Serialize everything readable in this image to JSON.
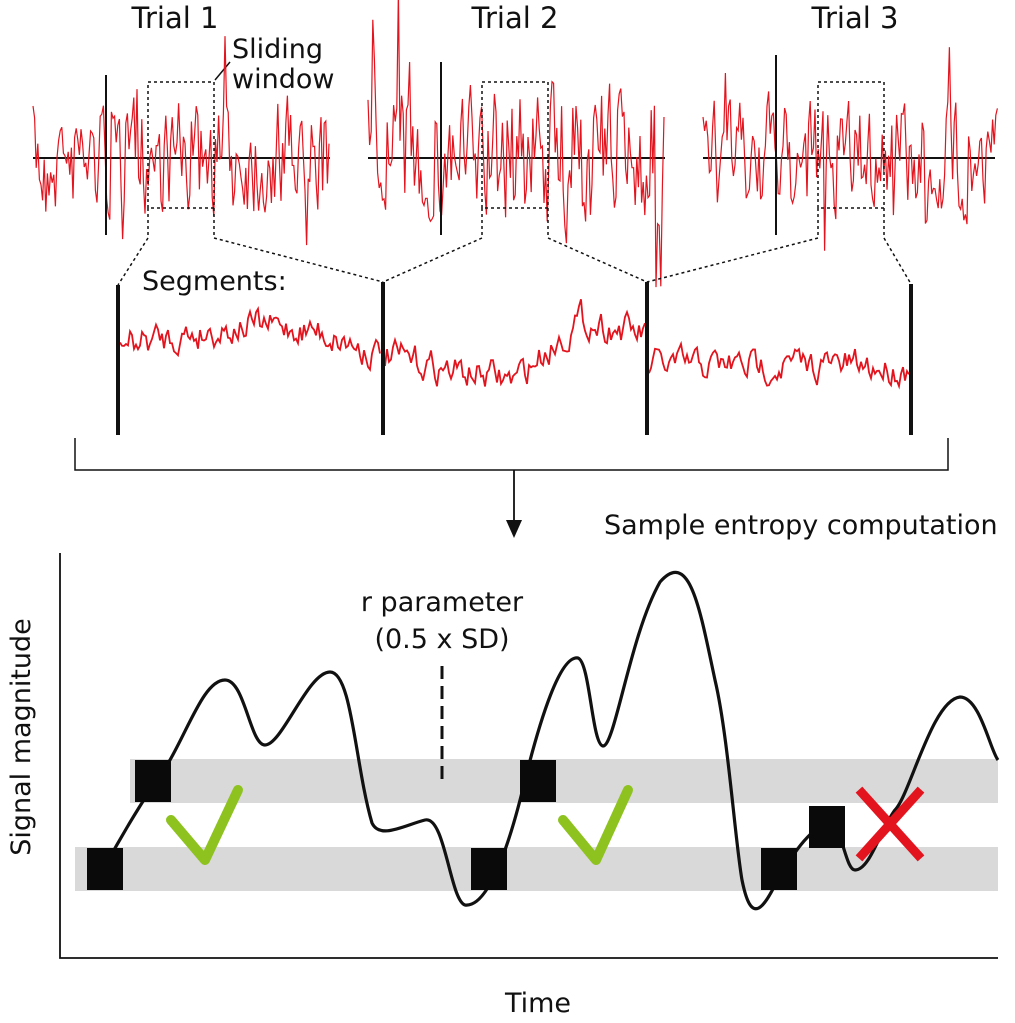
{
  "trials": {
    "t1": "Trial 1",
    "t2": "Trial 2",
    "t3": "Trial 3"
  },
  "window_label": {
    "line1": "Sliding",
    "line2": "window"
  },
  "segments_label": "Segments:",
  "computation_label": "Sample entropy computation",
  "r_param": {
    "line1": "r parameter",
    "line2": "(0.5 x SD)"
  },
  "axes": {
    "ylabel": "Signal magnitude",
    "xlabel": "Time"
  },
  "colors": {
    "signal": "#e3141e",
    "band": "#d9d9d9",
    "check": "#8dc21f",
    "cross": "#e3141e",
    "line": "#111111"
  },
  "icons": {
    "match": "check-icon",
    "mismatch": "cross-icon"
  }
}
